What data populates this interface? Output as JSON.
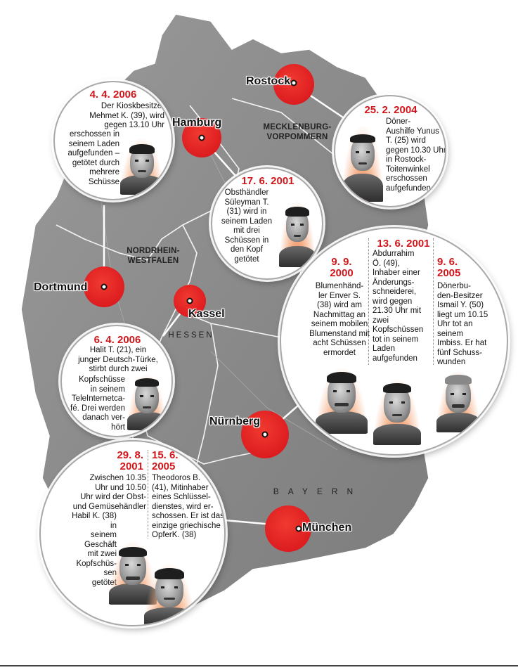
{
  "colors": {
    "marker_red": "#e31e24",
    "date_red": "#d0161b",
    "map_gray": "#8c8c8c",
    "border_white": "#ffffff"
  },
  "cities": {
    "rostock": "Rostock",
    "hamburg": "Hamburg",
    "dortmund": "Dortmund",
    "kassel": "Kassel",
    "nuernberg": "Nürnberg",
    "muenchen": "München"
  },
  "regions": {
    "mv_line1": "MECKLENBURG-",
    "mv_line2": "VORPOMMERN",
    "nrw_line1": "NORDRHEIN-",
    "nrw_line2": "WESTFALEN",
    "hessen": "HESSEN",
    "bayern": "BAYERN"
  },
  "cases": {
    "dortmund": {
      "date": "4. 4. 2006",
      "lines": [
        "Der Kioskbesitzer",
        "Mehmet K. (39), wird",
        "gegen 13.10 Uhr",
        "erschossen in",
        "seinem Laden",
        "aufgefunden –",
        "getötet durch",
        "mehrere",
        "Schüsse"
      ]
    },
    "rostock": {
      "date": "25. 2. 2004",
      "lines": [
        "Döner-",
        "Aushilfe Yunus",
        "T. (25) wird",
        "gegen 10.30 Uhr",
        "in Rostock-",
        "Toitenwinkel",
        "erschossen",
        "aufgefunden"
      ]
    },
    "hamburg": {
      "date": "17. 6. 2001",
      "lines": [
        "Obsthändler",
        "Süleyman T.",
        "(31) wird in",
        "seinem Laden",
        "mit drei",
        "Schüssen in",
        "den Kopf",
        "getötet"
      ]
    },
    "kassel": {
      "date": "6. 4. 2006",
      "lines": [
        "Halit T. (21), ein",
        "junger Deutsch-Türke,",
        "stirbt durch zwei",
        "Kopfschüsse",
        "in seinem",
        "TeleInternetca-",
        "fé. Drei werden",
        "danach ver-",
        "hört"
      ]
    },
    "nuernberg_1": {
      "date_line1": "9. 9.",
      "date_line2": "2000",
      "lines": [
        "Blumenhänd-",
        "ler Enver S.",
        "(38) wird am",
        "Nachmittag an",
        "seinem mobilen",
        "Blumenstand mit",
        "acht Schüssen",
        "ermordet"
      ]
    },
    "nuernberg_2": {
      "date": "13. 6. 2001",
      "lines": [
        "Abdurrahim",
        "Ö. (49),",
        "Inhaber einer",
        "Änderungs-",
        "schneiderei,",
        "wird gegen",
        "21.30 Uhr mit",
        "zwei",
        "Kopfschüssen",
        "tot in seinem",
        "Laden",
        "aufgefunden"
      ]
    },
    "nuernberg_3": {
      "date_line1": "9. 6.",
      "date_line2": "2005",
      "lines": [
        "Dönerbu-",
        "den-Besitzer",
        "Ismail Y. (50)",
        "liegt um 10.15",
        "Uhr tot an",
        "seinem",
        "Imbiss. Er hat",
        "fünf Schuss-",
        "wunden"
      ]
    },
    "muenchen_1": {
      "date_line1": "29. 8.",
      "date_line2": "2001",
      "lines": [
        "Zwischen 10.35",
        "Uhr und 10.50",
        "Uhr wird der Obst-",
        "und Gemüsehändler",
        "Habil K. (38) in",
        "seinem Geschäft",
        "mit zwei",
        "Kopfschüs-",
        "sen",
        "getötet"
      ]
    },
    "muenchen_2": {
      "date_line1": "15. 6.",
      "date_line2": "2005",
      "lines": [
        "Theodoros B.",
        "(41), Mitinhaber",
        "eines Schlüssel-",
        "dienstes, wird er-",
        "schossen. Er ist das",
        "einzige griechische",
        "OpferK. (38)"
      ]
    }
  }
}
